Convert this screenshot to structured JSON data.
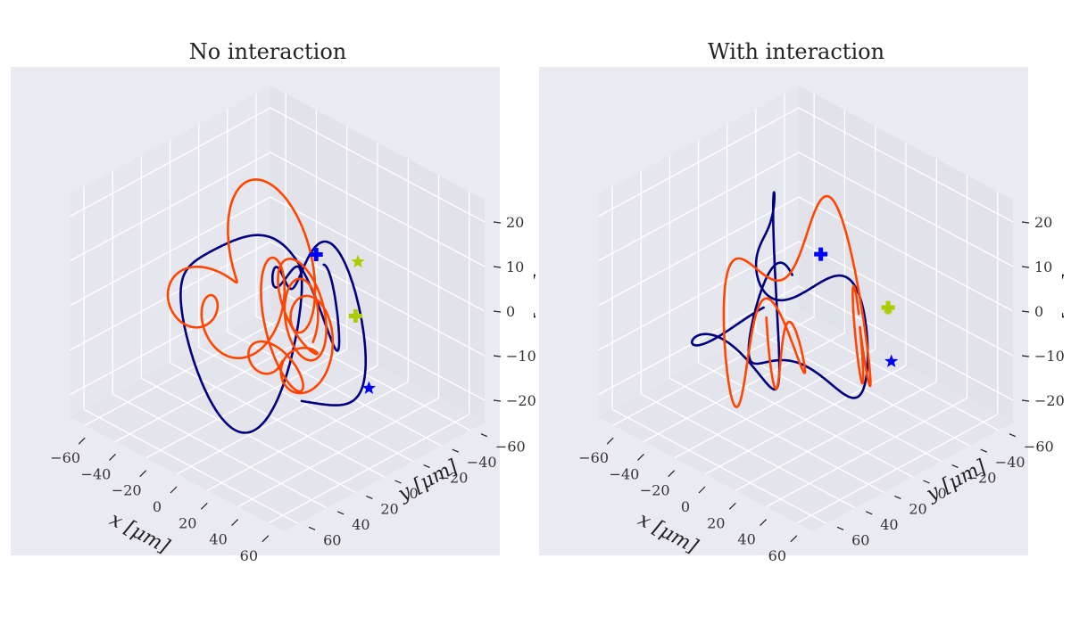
{
  "figure": {
    "colors": {
      "pane_background": "#eaeaf2",
      "grid": "#ffffff",
      "tick_text": "#333333",
      "trajectory_a": "#00007f",
      "trajectory_b": "#ff4500",
      "start_marker_a": "#0000ff",
      "end_marker_a": "#0000ff",
      "markers_b": "#aacc00"
    }
  },
  "chart_data": [
    {
      "type": "line",
      "projection": "3d",
      "title": "No interaction",
      "xlabel": "x [μm]",
      "ylabel": "y [μm]",
      "zlabel": "z [μm]",
      "xticks": [
        "−60",
        "−40",
        "−20",
        "0",
        "20",
        "40",
        "60"
      ],
      "yticks": [
        "−60",
        "−40",
        "−20",
        "0",
        "20",
        "40",
        "60"
      ],
      "zticks": [
        "−20",
        "−10",
        "0",
        "10",
        "20"
      ],
      "xlim": [
        -70,
        70
      ],
      "ylim": [
        -70,
        70
      ],
      "zlim": [
        -25,
        25
      ],
      "grid": true,
      "series": [
        {
          "color": "#00007f",
          "seed": 7,
          "ax": [
            18,
            20,
            12
          ],
          "fx": [
            1.0,
            2.3,
            3.7
          ],
          "ay": [
            20,
            16,
            10
          ],
          "fy": [
            1.3,
            2.9,
            4.1
          ],
          "az": [
            10,
            8,
            5
          ],
          "fz": [
            1.7,
            3.3,
            5.9
          ],
          "ox": 2,
          "oy": 0,
          "oz": 0
        },
        {
          "color": "#ff4500",
          "seed": 3,
          "ax": [
            16,
            14,
            22
          ],
          "fx": [
            0.9,
            2.1,
            9.0
          ],
          "ay": [
            17,
            12,
            20
          ],
          "fy": [
            1.1,
            2.7,
            9.0
          ],
          "az": [
            9,
            7,
            5
          ],
          "fz": [
            1.5,
            3.1,
            6.3
          ],
          "ox": -2,
          "oy": 2,
          "oz": 0
        }
      ],
      "markers": [
        {
          "series": 0,
          "symbol": "plus",
          "color": "#0000ff",
          "point": [
            18,
            -8,
            14
          ]
        },
        {
          "series": 0,
          "symbol": "star",
          "color": "#0000ff",
          "point": [
            30,
            -32,
            -18
          ]
        },
        {
          "series": 1,
          "symbol": "star",
          "color": "#aacc00",
          "point": [
            20,
            -35,
            8
          ]
        },
        {
          "series": 1,
          "symbol": "plus",
          "color": "#aacc00",
          "point": [
            25,
            -28,
            -2
          ]
        }
      ]
    },
    {
      "type": "line",
      "projection": "3d",
      "title": "With interaction",
      "xlabel": "x [μm]",
      "ylabel": "y [μm]",
      "zlabel": "z [μm]",
      "xticks": [
        "−60",
        "−40",
        "−20",
        "0",
        "20",
        "40",
        "60"
      ],
      "yticks": [
        "−60",
        "−40",
        "−20",
        "0",
        "20",
        "40",
        "60"
      ],
      "zticks": [
        "−20",
        "−10",
        "0",
        "10",
        "20"
      ],
      "xlim": [
        -70,
        70
      ],
      "ylim": [
        -70,
        70
      ],
      "zlim": [
        -25,
        25
      ],
      "grid": true,
      "series": [
        {
          "color": "#00007f",
          "seed": 11,
          "ax": [
            24,
            18,
            10
          ],
          "fx": [
            0.8,
            2.2,
            4.4
          ],
          "ay": [
            22,
            15,
            9
          ],
          "fy": [
            1.2,
            2.6,
            4.8
          ],
          "az": [
            10,
            7,
            4
          ],
          "fz": [
            1.6,
            3.5,
            6.1
          ],
          "ox": -6,
          "oy": 4,
          "oz": 0
        },
        {
          "color": "#ff4500",
          "seed": 5,
          "ax": [
            22,
            16,
            18
          ],
          "fx": [
            0.7,
            1.9,
            6.0
          ],
          "ay": [
            20,
            14,
            16
          ],
          "fy": [
            0.9,
            2.3,
            6.0
          ],
          "az": [
            10,
            8,
            4
          ],
          "fz": [
            1.3,
            2.9,
            5.7
          ],
          "ox": 4,
          "oy": 0,
          "oz": -2
        }
      ],
      "markers": [
        {
          "series": 0,
          "symbol": "plus",
          "color": "#0000ff",
          "point": [
            10,
            0,
            14
          ]
        },
        {
          "series": 0,
          "symbol": "star",
          "color": "#0000ff",
          "point": [
            28,
            -30,
            -12
          ]
        },
        {
          "series": 1,
          "symbol": "star",
          "color": "#aacc00",
          "point": [
            24,
            -32,
            -1
          ]
        },
        {
          "series": 1,
          "symbol": "plus",
          "color": "#aacc00",
          "point": [
            24,
            -32,
            -1
          ]
        }
      ]
    }
  ]
}
